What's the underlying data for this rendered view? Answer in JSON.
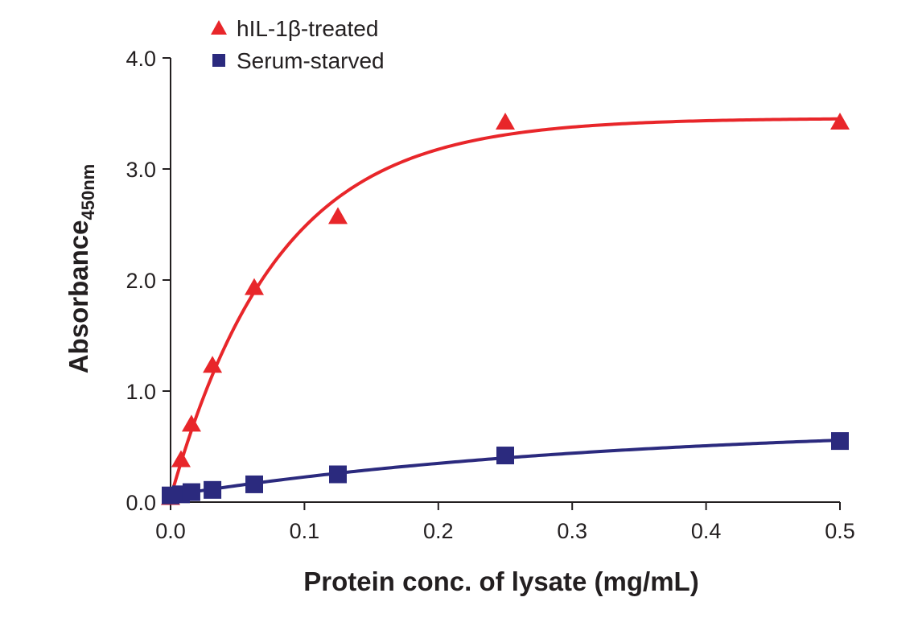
{
  "chart_data": {
    "type": "line",
    "xlabel": "Protein conc. of lysate (mg/mL)",
    "ylabel": "Absorbance",
    "ylabel_subscript": "450nm",
    "xlim": [
      0,
      0.5
    ],
    "ylim": [
      0,
      4.0
    ],
    "x_ticks": [
      "0.0",
      "0.1",
      "0.2",
      "0.3",
      "0.4",
      "0.5"
    ],
    "y_ticks": [
      "0.0",
      "1.0",
      "2.0",
      "3.0",
      "4.0"
    ],
    "grid": false,
    "legend_position": "top-left",
    "series": [
      {
        "name": "hIL-1β-treated",
        "marker": "triangle",
        "color": "#e8262a",
        "x": [
          0.0,
          0.0078,
          0.0156,
          0.0313,
          0.0625,
          0.125,
          0.25,
          0.5
        ],
        "y": [
          0.04,
          0.38,
          0.7,
          1.23,
          1.93,
          2.57,
          3.42,
          3.42
        ]
      },
      {
        "name": "Serum-starved",
        "marker": "square",
        "color": "#2b2a7e",
        "x": [
          0.0,
          0.0078,
          0.0156,
          0.0313,
          0.0625,
          0.125,
          0.25,
          0.5
        ],
        "y": [
          0.06,
          0.07,
          0.09,
          0.11,
          0.16,
          0.25,
          0.42,
          0.55
        ]
      }
    ]
  }
}
